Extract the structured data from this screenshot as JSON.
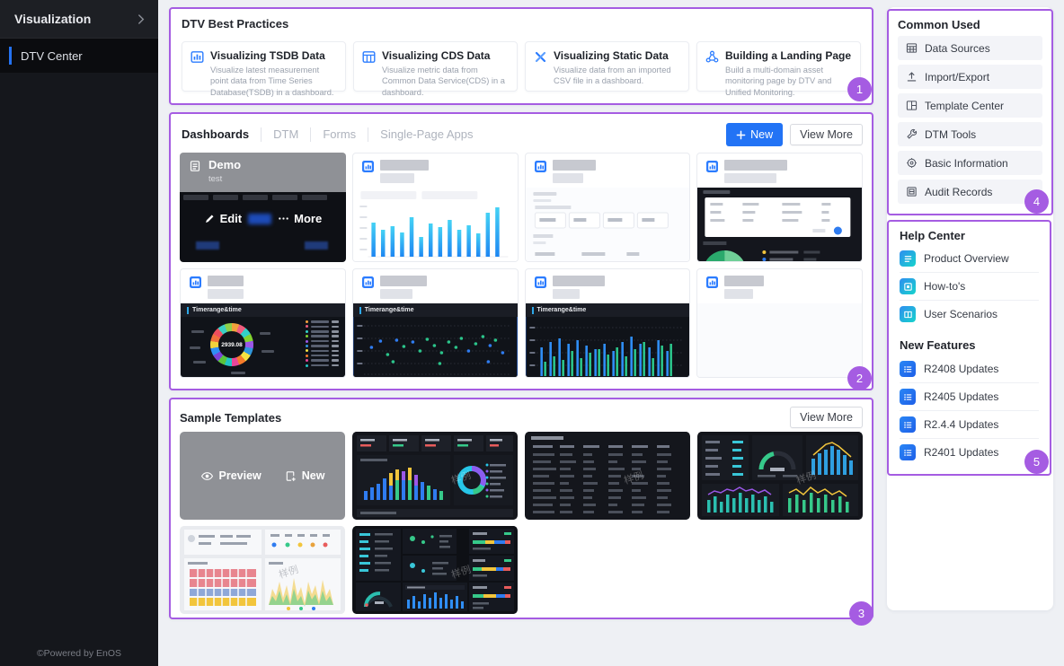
{
  "colors": {
    "accent_blue": "#2273f5",
    "annotation_purple": "#a55ce2",
    "sidebar_bg": "#15171c"
  },
  "sidebar": {
    "title": "Visualization",
    "items": [
      {
        "label": "DTV Center",
        "active": true
      }
    ],
    "footer": "©Powered by EnOS"
  },
  "regions": {
    "badges": {
      "best_practices": "1",
      "dashboards": "2",
      "sample_templates": "3",
      "common_used": "4",
      "help_center": "5"
    }
  },
  "best_practices": {
    "title": "DTV Best Practices",
    "cards": [
      {
        "icon": "tsdb-icon",
        "title": "Visualizing TSDB Data",
        "desc": "Visualize latest measurement point data from Time Series Database(TSDB) in a dashboard."
      },
      {
        "icon": "cds-icon",
        "title": "Visualizing CDS Data",
        "desc": "Visualize metric data from Common Data Service(CDS) in a dashboard."
      },
      {
        "icon": "static-data-icon",
        "title": "Visualizing Static Data",
        "desc": "Visualize data from an imported CSV file in a dashboard."
      },
      {
        "icon": "landing-page-icon",
        "title": "Building a Landing Page",
        "desc": "Build a multi-domain asset monitoring page by DTV and Unified Monitoring."
      }
    ]
  },
  "dashboards": {
    "tabs": [
      {
        "label": "Dashboards",
        "active": true
      },
      {
        "label": "DTM"
      },
      {
        "label": "Forms"
      },
      {
        "label": "Single-Page Apps"
      }
    ],
    "new_label": "New",
    "view_more_label": "View More",
    "demo_card": {
      "title": "Demo",
      "subtitle": "test",
      "edit_label": "Edit",
      "more_label": "More"
    },
    "thumb_chart_title": "Timerange&time",
    "donut_center_value": "2939.08"
  },
  "sample_templates": {
    "title": "Sample Templates",
    "view_more_label": "View More",
    "preview_label": "Preview",
    "new_label": "New",
    "watermark": "样例"
  },
  "common_used": {
    "title": "Common Used",
    "items": [
      {
        "icon": "table-grid-icon",
        "label": "Data Sources"
      },
      {
        "icon": "upload-icon",
        "label": "Import/Export"
      },
      {
        "icon": "template-center-icon",
        "label": "Template Center"
      },
      {
        "icon": "wrench-icon",
        "label": "DTM Tools"
      },
      {
        "icon": "gear-icon",
        "label": "Basic Information"
      },
      {
        "icon": "audit-doc-icon",
        "label": "Audit Records"
      }
    ]
  },
  "help_center": {
    "title": "Help Center",
    "items": [
      {
        "icon": "doc-lines-icon",
        "label": "Product Overview"
      },
      {
        "icon": "how-to-icon",
        "label": "How-to's"
      },
      {
        "icon": "book-icon",
        "label": "User Scenarios"
      }
    ]
  },
  "new_features": {
    "title": "New Features",
    "items": [
      {
        "icon": "list-icon",
        "label": "R2408 Updates"
      },
      {
        "icon": "list-icon",
        "label": "R2405 Updates"
      },
      {
        "icon": "list-icon",
        "label": "R2.4.4 Updates"
      },
      {
        "icon": "list-icon",
        "label": "R2401 Updates"
      }
    ]
  }
}
